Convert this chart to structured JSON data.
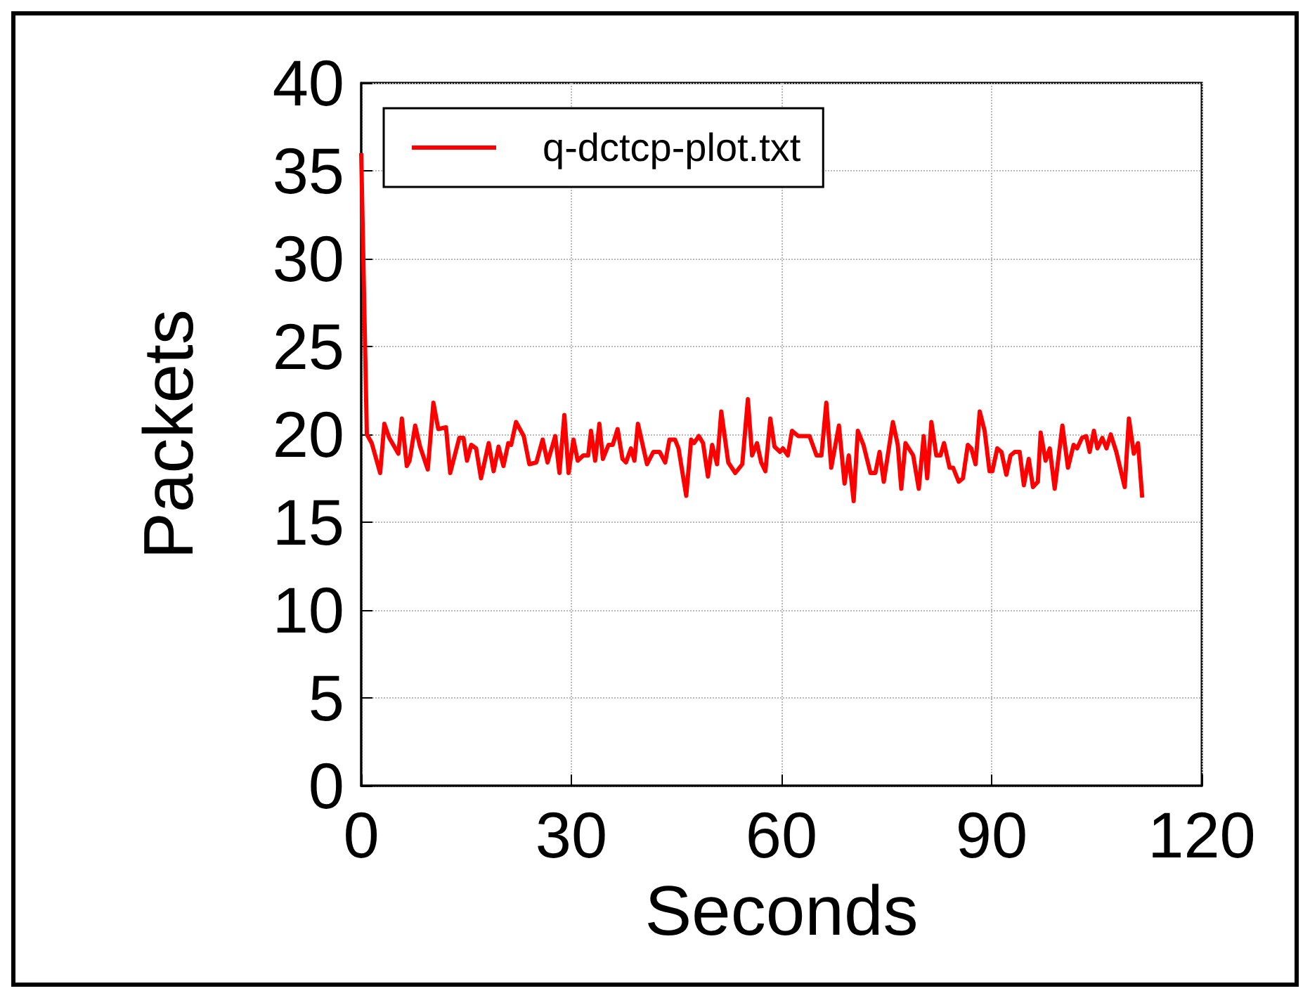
{
  "chart_data": {
    "type": "line",
    "xlabel": "Seconds",
    "ylabel": "Packets",
    "x": [
      0,
      0.8,
      1.5,
      2.7,
      3.3,
      4.0,
      5.3,
      5.8,
      6.5,
      6.9,
      7.7,
      8.4,
      9.5,
      10.3,
      11,
      12.1,
      12.7,
      14,
      14.6,
      15.1,
      15.7,
      16.4,
      17.1,
      18.2,
      18.9,
      19.6,
      20.3,
      21,
      21.4,
      22.1,
      23.2,
      24,
      25,
      25.9,
      26.6,
      27.7,
      28.3,
      29,
      29.6,
      30.3,
      30.9,
      31.7,
      32.4,
      32.8,
      33.4,
      34,
      34.5,
      35.3,
      35.9,
      36.6,
      37.3,
      37.8,
      38.5,
      39,
      39.5,
      40.8,
      41.7,
      42.6,
      43.4,
      44,
      44.8,
      45.3,
      46.4,
      47.1,
      47.5,
      48.2,
      48.8,
      49.5,
      50.1,
      50.8,
      51.4,
      52.4,
      53.4,
      54.4,
      55.2,
      55.8,
      56.5,
      57.1,
      57.7,
      58.4,
      59,
      59.8,
      60.2,
      60.9,
      61.5,
      62.4,
      64,
      65,
      65.7,
      66.4,
      67.1,
      68.2,
      69,
      69.6,
      70.3,
      70.9,
      71.7,
      72.7,
      73.4,
      74,
      74.6,
      75.9,
      76.6,
      77.1,
      77.7,
      78.8,
      79.6,
      80.3,
      80.8,
      81.4,
      82.1,
      82.7,
      83.2,
      84,
      84.5,
      85.3,
      85.9,
      86.6,
      87.1,
      87.7,
      88.3,
      89,
      89.7,
      90.1,
      90.8,
      91.4,
      92.1,
      92.7,
      93.3,
      94,
      94.6,
      95.3,
      95.9,
      96.6,
      97,
      97.7,
      98.3,
      99,
      100.1,
      100.9,
      101.7,
      102.2,
      102.9,
      103.5,
      104,
      104.6,
      105.1,
      105.8,
      106.4,
      107,
      107.8,
      109,
      109.6,
      110.3,
      110.9,
      111.5
    ],
    "series": [
      {
        "name": "q-dctcp-plot.txt",
        "color": "#ff0000",
        "values": [
          36,
          20,
          19.5,
          17.8,
          20.6,
          19.8,
          18.9,
          20.9,
          18.2,
          18.5,
          20.5,
          19.3,
          18,
          21.8,
          20.3,
          20.4,
          17.8,
          19.8,
          19.8,
          18.5,
          19.4,
          19.2,
          17.5,
          19.5,
          17.9,
          19.3,
          18.2,
          19.5,
          19.4,
          20.7,
          19.9,
          18.3,
          18.4,
          19.7,
          18.4,
          19.9,
          17.8,
          21.1,
          17.8,
          19.7,
          18.5,
          18.8,
          18.8,
          20.2,
          18.5,
          20.6,
          18.6,
          19.4,
          19.4,
          20.3,
          18.6,
          18.4,
          19.2,
          18.5,
          20.6,
          18.3,
          19,
          19,
          18.4,
          19.7,
          19.7,
          19.2,
          16.5,
          19.7,
          19.5,
          19.9,
          19.5,
          17.6,
          19.4,
          18.3,
          21.3,
          18.4,
          17.8,
          18.3,
          22,
          18.8,
          19.5,
          18.4,
          17.9,
          20.9,
          19.3,
          19,
          19.2,
          18.8,
          20.2,
          19.9,
          19.9,
          18.8,
          18.8,
          21.8,
          18.1,
          20.5,
          17.2,
          18.8,
          16.2,
          20.2,
          19.4,
          17.8,
          17.8,
          19,
          17.3,
          20.7,
          19.4,
          16.9,
          19.5,
          18.8,
          16.9,
          19.9,
          17.5,
          20.7,
          18.8,
          18.8,
          19.5,
          18.1,
          18.1,
          17.3,
          17.5,
          19.4,
          19.2,
          18.3,
          21.3,
          20.2,
          17.9,
          17.9,
          19.2,
          19,
          17.7,
          18.8,
          19,
          19,
          17.1,
          18.6,
          17,
          17.3,
          20.1,
          18.5,
          19.2,
          16.9,
          20.5,
          18.1,
          19.4,
          19.2,
          19.8,
          19.9,
          19,
          20.2,
          19.2,
          19.8,
          19.2,
          20,
          19,
          17,
          20.9,
          18.9,
          19.5,
          16.4
        ]
      }
    ],
    "xlim": [
      0,
      120
    ],
    "xticks": [
      0,
      30,
      60,
      90,
      120
    ],
    "ylim": [
      0,
      40
    ],
    "yticks": [
      0,
      5,
      10,
      15,
      20,
      25,
      30,
      35,
      40
    ],
    "grid": true,
    "legend": "top left",
    "marker": "none",
    "line_style": "solid"
  }
}
